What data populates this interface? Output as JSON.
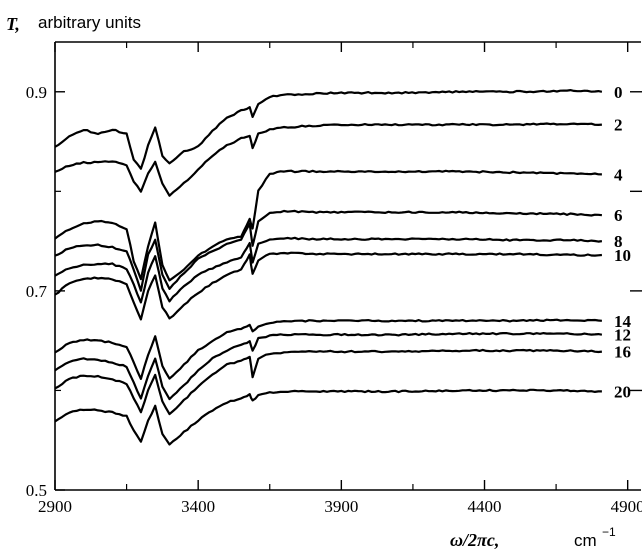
{
  "chart_data": {
    "type": "line",
    "ylabel_symbol": "T,",
    "ylabel": "arbitrary units",
    "xlabel_symbol": "ω/2πc,",
    "xlabel_unit": "cm",
    "xlabel_exponent": "−1",
    "xlim": [
      2900,
      4950
    ],
    "ylim": [
      0.5,
      0.95
    ],
    "xticks": [
      2900,
      3400,
      3900,
      4400,
      4900
    ],
    "yticks": [
      0.5,
      0.7,
      0.9
    ],
    "xtick_labels": [
      "2900",
      "3400",
      "3900",
      "4400",
      "4900"
    ],
    "ytick_labels": [
      "0.5",
      "0.7",
      "0.9"
    ],
    "x": [
      2900,
      2950,
      3000,
      3050,
      3100,
      3150,
      3175,
      3200,
      3225,
      3250,
      3275,
      3300,
      3350,
      3400,
      3450,
      3500,
      3550,
      3580,
      3590,
      3610,
      3650,
      3700,
      3800,
      3900,
      4100,
      4300,
      4500,
      4700,
      4810
    ],
    "series": [
      {
        "name": "0",
        "values": [
          0.844,
          0.856,
          0.862,
          0.858,
          0.862,
          0.858,
          0.832,
          0.822,
          0.846,
          0.864,
          0.836,
          0.828,
          0.84,
          0.845,
          0.861,
          0.874,
          0.881,
          0.884,
          0.875,
          0.888,
          0.895,
          0.897,
          0.898,
          0.899,
          0.899,
          0.9,
          0.9,
          0.901,
          0.9
        ]
      },
      {
        "name": "2",
        "values": [
          0.819,
          0.826,
          0.829,
          0.829,
          0.83,
          0.826,
          0.81,
          0.8,
          0.818,
          0.83,
          0.808,
          0.796,
          0.808,
          0.822,
          0.836,
          0.846,
          0.853,
          0.856,
          0.843,
          0.858,
          0.862,
          0.864,
          0.866,
          0.867,
          0.867,
          0.867,
          0.867,
          0.868,
          0.867
        ]
      },
      {
        "name": "4",
        "values": [
          0.752,
          0.762,
          0.768,
          0.77,
          0.768,
          0.762,
          0.73,
          0.712,
          0.745,
          0.768,
          0.726,
          0.71,
          0.722,
          0.736,
          0.744,
          0.752,
          0.755,
          0.772,
          0.763,
          0.8,
          0.818,
          0.82,
          0.82,
          0.82,
          0.82,
          0.82,
          0.819,
          0.818,
          0.817
        ]
      },
      {
        "name": "6",
        "values": [
          0.735,
          0.743,
          0.746,
          0.746,
          0.744,
          0.74,
          0.722,
          0.7,
          0.736,
          0.751,
          0.716,
          0.702,
          0.718,
          0.732,
          0.74,
          0.747,
          0.752,
          0.768,
          0.745,
          0.77,
          0.778,
          0.78,
          0.779,
          0.779,
          0.779,
          0.779,
          0.778,
          0.777,
          0.776
        ]
      },
      {
        "name": "8",
        "values": [
          0.715,
          0.723,
          0.726,
          0.727,
          0.727,
          0.722,
          0.706,
          0.688,
          0.718,
          0.735,
          0.702,
          0.69,
          0.705,
          0.716,
          0.723,
          0.729,
          0.734,
          0.748,
          0.729,
          0.747,
          0.752,
          0.753,
          0.752,
          0.752,
          0.752,
          0.752,
          0.751,
          0.751,
          0.75
        ]
      },
      {
        "name": "10",
        "values": [
          0.696,
          0.708,
          0.712,
          0.713,
          0.712,
          0.707,
          0.688,
          0.672,
          0.7,
          0.716,
          0.684,
          0.672,
          0.686,
          0.698,
          0.708,
          0.716,
          0.722,
          0.736,
          0.717,
          0.731,
          0.737,
          0.738,
          0.737,
          0.737,
          0.737,
          0.737,
          0.737,
          0.736,
          0.736
        ]
      },
      {
        "name": "14",
        "values": [
          0.638,
          0.648,
          0.651,
          0.65,
          0.648,
          0.644,
          0.628,
          0.612,
          0.636,
          0.654,
          0.625,
          0.612,
          0.626,
          0.64,
          0.65,
          0.658,
          0.662,
          0.666,
          0.66,
          0.664,
          0.668,
          0.669,
          0.67,
          0.67,
          0.67,
          0.67,
          0.67,
          0.671,
          0.67
        ]
      },
      {
        "name": "12",
        "values": [
          0.62,
          0.629,
          0.632,
          0.631,
          0.628,
          0.624,
          0.608,
          0.592,
          0.614,
          0.632,
          0.604,
          0.592,
          0.605,
          0.62,
          0.632,
          0.64,
          0.646,
          0.649,
          0.64,
          0.652,
          0.655,
          0.656,
          0.656,
          0.656,
          0.656,
          0.657,
          0.657,
          0.657,
          0.656
        ]
      },
      {
        "name": "16",
        "values": [
          0.602,
          0.612,
          0.615,
          0.614,
          0.611,
          0.607,
          0.592,
          0.578,
          0.6,
          0.616,
          0.589,
          0.576,
          0.59,
          0.604,
          0.616,
          0.626,
          0.63,
          0.634,
          0.614,
          0.632,
          0.637,
          0.638,
          0.639,
          0.639,
          0.639,
          0.64,
          0.64,
          0.64,
          0.639
        ]
      },
      {
        "name": "20",
        "values": [
          0.569,
          0.578,
          0.581,
          0.58,
          0.578,
          0.574,
          0.56,
          0.548,
          0.57,
          0.584,
          0.556,
          0.546,
          0.558,
          0.57,
          0.58,
          0.588,
          0.592,
          0.596,
          0.59,
          0.595,
          0.598,
          0.599,
          0.599,
          0.599,
          0.599,
          0.6,
          0.6,
          0.6,
          0.599
        ]
      }
    ],
    "grid": false,
    "legend": "curve labels at right end"
  }
}
